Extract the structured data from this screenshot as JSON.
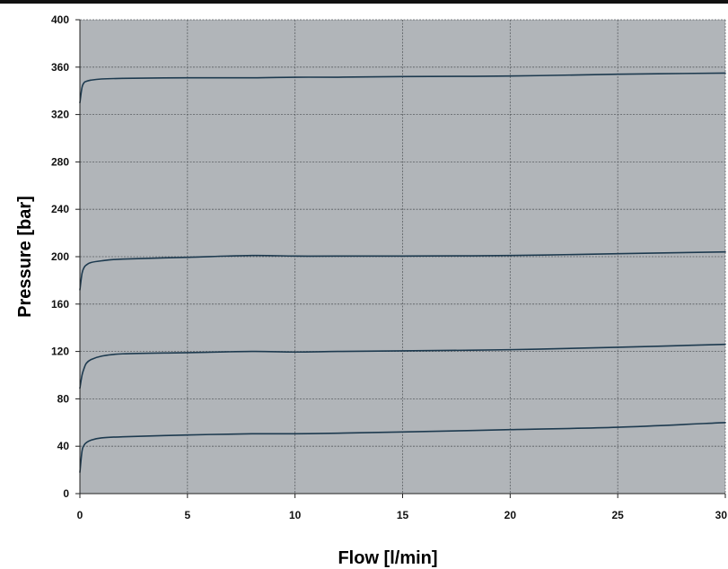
{
  "chart_data": {
    "type": "line",
    "title": "",
    "xlabel": "Flow [l/min]",
    "ylabel": "Pressure [bar]",
    "xlim": [
      0,
      30
    ],
    "ylim": [
      0,
      400
    ],
    "x_ticks": [
      0,
      5,
      10,
      15,
      20,
      25,
      30
    ],
    "y_ticks": [
      0,
      40,
      80,
      120,
      160,
      200,
      240,
      280,
      320,
      360,
      400
    ],
    "x_tick_labels": [
      "0",
      "5",
      "10",
      "15",
      "20",
      "25",
      "30"
    ],
    "y_tick_labels": [
      "0",
      "40",
      "80",
      "120",
      "160",
      "200",
      "240",
      "280",
      "320",
      "360",
      "400"
    ],
    "grid": true,
    "legend": "none",
    "series": [
      {
        "x": [
          0,
          0.1,
          0.2,
          0.3,
          0.5,
          1,
          2,
          5,
          8,
          10,
          12,
          15,
          20,
          25,
          30
        ],
        "values": [
          18,
          36,
          41,
          43,
          45,
          47,
          48,
          49.5,
          50.5,
          50.5,
          51,
          52,
          54,
          56,
          60
        ]
      },
      {
        "x": [
          0,
          0.1,
          0.2,
          0.3,
          0.5,
          1,
          2,
          5,
          8,
          10,
          12,
          15,
          20,
          25,
          30
        ],
        "values": [
          89,
          100,
          106,
          110,
          113,
          116,
          118,
          119,
          120,
          119.5,
          120,
          120.5,
          121.5,
          123.5,
          126
        ]
      },
      {
        "x": [
          0,
          0.1,
          0.2,
          0.3,
          0.5,
          1,
          2,
          5,
          8,
          10,
          12,
          15,
          20,
          25,
          30
        ],
        "values": [
          172,
          186,
          191,
          193,
          195,
          196.5,
          198,
          199.5,
          201,
          200.5,
          200.5,
          200.5,
          201,
          202.5,
          204
        ]
      },
      {
        "x": [
          0,
          0.1,
          0.2,
          0.3,
          0.5,
          1,
          2,
          5,
          8,
          10,
          12,
          15,
          20,
          25,
          30
        ],
        "values": [
          330,
          343,
          347,
          348,
          349,
          350,
          350.5,
          351,
          351,
          351.5,
          351.5,
          352,
          352.5,
          354,
          355
        ]
      }
    ],
    "colors": {
      "plot_background": "#b1b5b9",
      "line": "#1d3a4f",
      "grid": "#5a5e62",
      "axis": "#222222"
    }
  }
}
